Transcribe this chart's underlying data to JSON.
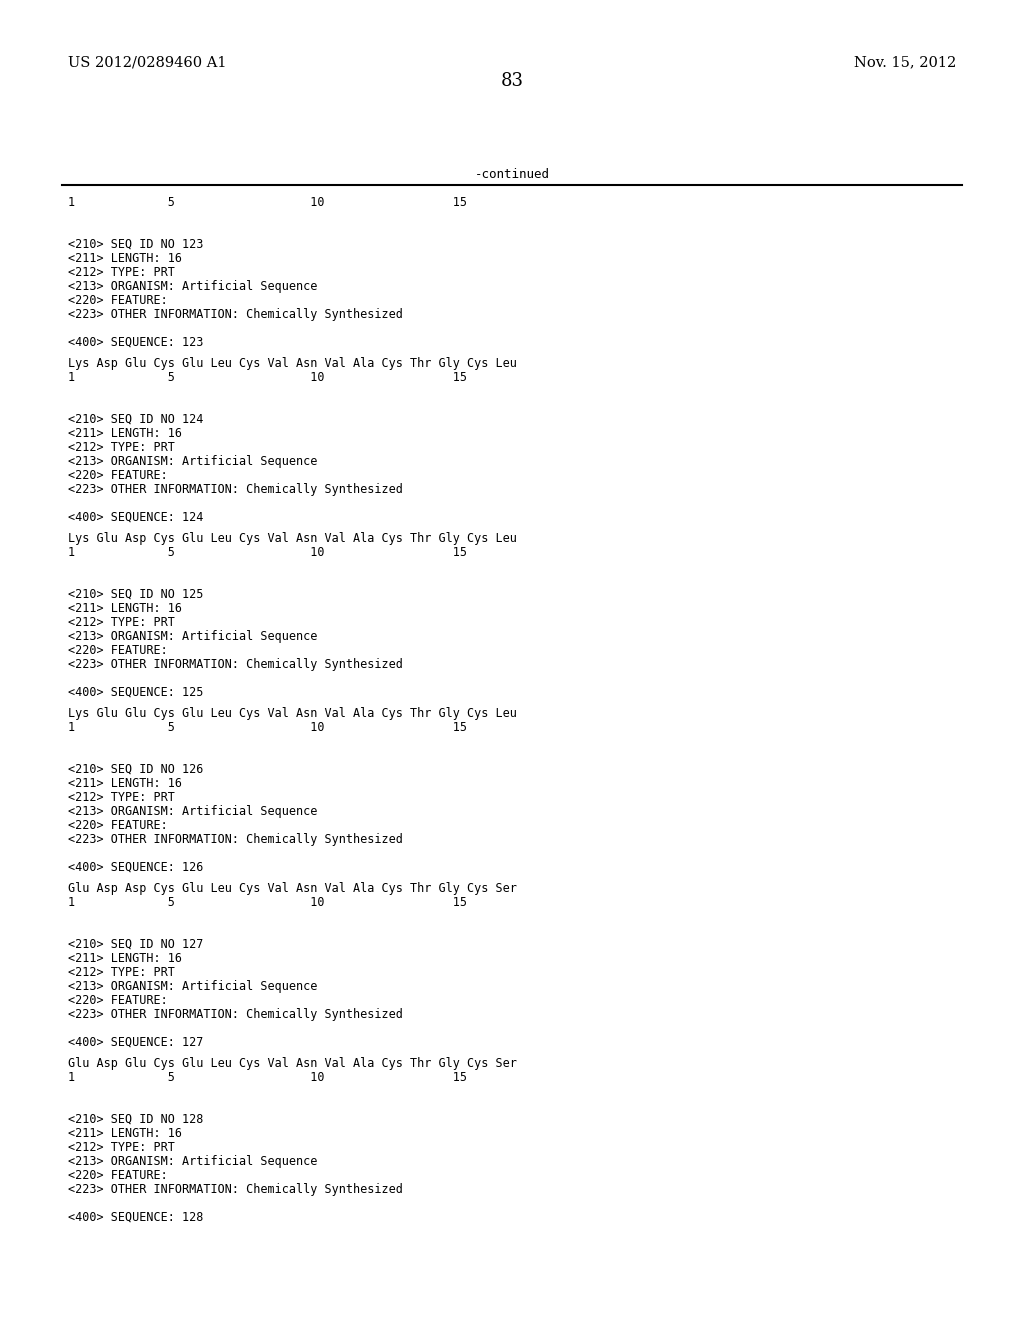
{
  "page_number": "83",
  "patent_number": "US 2012/0289460 A1",
  "patent_date": "Nov. 15, 2012",
  "continued_label": "-continued",
  "background_color": "#ffffff",
  "text_color": "#000000",
  "sections": [
    {
      "meta": [
        "<210> SEQ ID NO 123",
        "<211> LENGTH: 16",
        "<212> TYPE: PRT",
        "<213> ORGANISM: Artificial Sequence",
        "<220> FEATURE:",
        "<223> OTHER INFORMATION: Chemically Synthesized"
      ],
      "sequence_label": "<400> SEQUENCE: 123",
      "sequence": "Lys Asp Glu Cys Glu Leu Cys Val Asn Val Ala Cys Thr Gly Cys Leu",
      "ruler": "1             5                   10                  15"
    },
    {
      "meta": [
        "<210> SEQ ID NO 124",
        "<211> LENGTH: 16",
        "<212> TYPE: PRT",
        "<213> ORGANISM: Artificial Sequence",
        "<220> FEATURE:",
        "<223> OTHER INFORMATION: Chemically Synthesized"
      ],
      "sequence_label": "<400> SEQUENCE: 124",
      "sequence": "Lys Glu Asp Cys Glu Leu Cys Val Asn Val Ala Cys Thr Gly Cys Leu",
      "ruler": "1             5                   10                  15"
    },
    {
      "meta": [
        "<210> SEQ ID NO 125",
        "<211> LENGTH: 16",
        "<212> TYPE: PRT",
        "<213> ORGANISM: Artificial Sequence",
        "<220> FEATURE:",
        "<223> OTHER INFORMATION: Chemically Synthesized"
      ],
      "sequence_label": "<400> SEQUENCE: 125",
      "sequence": "Lys Glu Glu Cys Glu Leu Cys Val Asn Val Ala Cys Thr Gly Cys Leu",
      "ruler": "1             5                   10                  15"
    },
    {
      "meta": [
        "<210> SEQ ID NO 126",
        "<211> LENGTH: 16",
        "<212> TYPE: PRT",
        "<213> ORGANISM: Artificial Sequence",
        "<220> FEATURE:",
        "<223> OTHER INFORMATION: Chemically Synthesized"
      ],
      "sequence_label": "<400> SEQUENCE: 126",
      "sequence": "Glu Asp Asp Cys Glu Leu Cys Val Asn Val Ala Cys Thr Gly Cys Ser",
      "ruler": "1             5                   10                  15"
    },
    {
      "meta": [
        "<210> SEQ ID NO 127",
        "<211> LENGTH: 16",
        "<212> TYPE: PRT",
        "<213> ORGANISM: Artificial Sequence",
        "<220> FEATURE:",
        "<223> OTHER INFORMATION: Chemically Synthesized"
      ],
      "sequence_label": "<400> SEQUENCE: 127",
      "sequence": "Glu Asp Glu Cys Glu Leu Cys Val Asn Val Ala Cys Thr Gly Cys Ser",
      "ruler": "1             5                   10                  15"
    },
    {
      "meta": [
        "<210> SEQ ID NO 128",
        "<211> LENGTH: 16",
        "<212> TYPE: PRT",
        "<213> ORGANISM: Artificial Sequence",
        "<220> FEATURE:",
        "<223> OTHER INFORMATION: Chemically Synthesized"
      ],
      "sequence_label": "<400> SEQUENCE: 128",
      "sequence": "",
      "ruler": ""
    }
  ]
}
